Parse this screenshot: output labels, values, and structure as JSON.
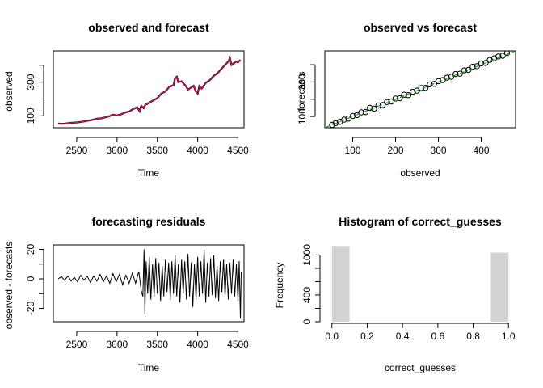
{
  "chart_data": [
    {
      "type": "line",
      "title": "observed and forecast",
      "xlabel": "Time",
      "ylabel": "observed",
      "xlim": [
        2210,
        4575
      ],
      "ylim": [
        30,
        485
      ],
      "xticks": [
        2500,
        3000,
        3500,
        4000,
        4500
      ],
      "yticks": [
        100,
        300
      ],
      "yticks_unlabeled": [
        200,
        400
      ],
      "grid": false,
      "legend": "none",
      "series": [
        {
          "color": "#000000",
          "points": [
            [
              2270,
              55
            ],
            [
              2300,
              53
            ],
            [
              2350,
              54
            ],
            [
              2400,
              57
            ],
            [
              2450,
              59
            ],
            [
              2500,
              61
            ],
            [
              2550,
              64
            ],
            [
              2600,
              68
            ],
            [
              2650,
              72
            ],
            [
              2700,
              77
            ],
            [
              2750,
              83
            ],
            [
              2800,
              85
            ],
            [
              2850,
              91
            ],
            [
              2900,
              97
            ],
            [
              2950,
              107
            ],
            [
              3000,
              103
            ],
            [
              3050,
              109
            ],
            [
              3100,
              120
            ],
            [
              3150,
              126
            ],
            [
              3200,
              141
            ],
            [
              3250,
              150
            ],
            [
              3280,
              128
            ],
            [
              3300,
              160
            ],
            [
              3330,
              146
            ],
            [
              3350,
              165
            ],
            [
              3400,
              178
            ],
            [
              3450,
              192
            ],
            [
              3500,
              205
            ],
            [
              3550,
              232
            ],
            [
              3600,
              245
            ],
            [
              3650,
              273
            ],
            [
              3700,
              282
            ],
            [
              3720,
              325
            ],
            [
              3740,
              332
            ],
            [
              3760,
              300
            ],
            [
              3800,
              305
            ],
            [
              3850,
              278
            ],
            [
              3880,
              256
            ],
            [
              3900,
              262
            ],
            [
              3950,
              278
            ],
            [
              3980,
              242
            ],
            [
              4000,
              232
            ],
            [
              4020,
              276
            ],
            [
              4050,
              262
            ],
            [
              4100,
              296
            ],
            [
              4150,
              312
            ],
            [
              4200,
              338
            ],
            [
              4250,
              355
            ],
            [
              4300,
              382
            ],
            [
              4350,
              408
            ],
            [
              4380,
              422
            ],
            [
              4400,
              442
            ],
            [
              4420,
              402
            ],
            [
              4450,
              412
            ],
            [
              4480,
              422
            ],
            [
              4500,
              417
            ],
            [
              4530,
              432
            ]
          ]
        },
        {
          "color": "#df0e62",
          "points": [
            [
              2270,
              55
            ],
            [
              2300,
              53
            ],
            [
              2350,
              54
            ],
            [
              2400,
              57
            ],
            [
              2450,
              59
            ],
            [
              2500,
              61
            ],
            [
              2550,
              64
            ],
            [
              2600,
              68
            ],
            [
              2650,
              72
            ],
            [
              2700,
              77
            ],
            [
              2750,
              83
            ],
            [
              2800,
              85
            ],
            [
              2850,
              91
            ],
            [
              2900,
              97
            ],
            [
              2950,
              107
            ],
            [
              3000,
              103
            ],
            [
              3050,
              109
            ],
            [
              3100,
              120
            ],
            [
              3150,
              126
            ],
            [
              3200,
              141
            ],
            [
              3250,
              150
            ],
            [
              3280,
              128
            ],
            [
              3300,
              160
            ],
            [
              3330,
              146
            ],
            [
              3350,
              165
            ],
            [
              3400,
              178
            ],
            [
              3450,
              192
            ],
            [
              3500,
              205
            ],
            [
              3550,
              232
            ],
            [
              3600,
              245
            ],
            [
              3650,
              273
            ],
            [
              3700,
              282
            ],
            [
              3720,
              325
            ],
            [
              3740,
              332
            ],
            [
              3760,
              300
            ],
            [
              3800,
              305
            ],
            [
              3850,
              278
            ],
            [
              3880,
              256
            ],
            [
              3900,
              262
            ],
            [
              3950,
              278
            ],
            [
              3980,
              242
            ],
            [
              4000,
              232
            ],
            [
              4020,
              276
            ],
            [
              4050,
              262
            ],
            [
              4100,
              296
            ],
            [
              4150,
              312
            ],
            [
              4200,
              338
            ],
            [
              4250,
              355
            ],
            [
              4300,
              382
            ],
            [
              4350,
              408
            ],
            [
              4380,
              422
            ],
            [
              4400,
              442
            ],
            [
              4420,
              402
            ],
            [
              4450,
              412
            ],
            [
              4480,
              422
            ],
            [
              4500,
              417
            ],
            [
              4530,
              432
            ]
          ]
        }
      ]
    },
    {
      "type": "scatter",
      "title": "observed vs forecast",
      "xlabel": "observed",
      "ylabel": "forecasts",
      "xlim": [
        35,
        480
      ],
      "ylim": [
        35,
        480
      ],
      "xticks": [
        100,
        200,
        300,
        400
      ],
      "yticks": [
        100,
        300
      ],
      "yticks_unlabeled": [
        200,
        400
      ],
      "grid": false,
      "legend": "none",
      "points_color": "#000000",
      "fit_line": {
        "color": "#1a9e1a",
        "slope": 1,
        "intercept": 0
      },
      "points": [
        [
          52,
          52
        ],
        [
          60,
          61
        ],
        [
          70,
          69
        ],
        [
          80,
          82
        ],
        [
          90,
          88
        ],
        [
          100,
          103
        ],
        [
          110,
          108
        ],
        [
          120,
          124
        ],
        [
          130,
          126
        ],
        [
          140,
          150
        ],
        [
          150,
          145
        ],
        [
          160,
          164
        ],
        [
          170,
          166
        ],
        [
          180,
          184
        ],
        [
          190,
          187
        ],
        [
          200,
          204
        ],
        [
          210,
          206
        ],
        [
          220,
          226
        ],
        [
          230,
          224
        ],
        [
          240,
          243
        ],
        [
          250,
          250
        ],
        [
          260,
          265
        ],
        [
          270,
          266
        ],
        [
          280,
          286
        ],
        [
          290,
          289
        ],
        [
          300,
          305
        ],
        [
          310,
          311
        ],
        [
          320,
          325
        ],
        [
          330,
          330
        ],
        [
          340,
          346
        ],
        [
          350,
          348
        ],
        [
          360,
          367
        ],
        [
          370,
          370
        ],
        [
          380,
          388
        ],
        [
          390,
          392
        ],
        [
          400,
          408
        ],
        [
          410,
          410
        ],
        [
          420,
          428
        ],
        [
          430,
          437
        ],
        [
          440,
          448
        ],
        [
          450,
          452
        ],
        [
          460,
          468
        ]
      ]
    },
    {
      "type": "line",
      "title": "forecasting residuals",
      "xlabel": "Time",
      "ylabel": "observed - forecasts",
      "xlim": [
        2210,
        4575
      ],
      "ylim": [
        -29,
        23
      ],
      "xticks": [
        2500,
        3000,
        3500,
        4000,
        4500
      ],
      "yticks": [
        -20,
        0,
        20
      ],
      "yticks_unlabeled": [
        -10,
        10
      ],
      "grid": false,
      "legend": "none",
      "series": [
        {
          "color": "#000000",
          "points": [
            [
              2270,
              0
            ],
            [
              2310,
              1.5
            ],
            [
              2350,
              -1
            ],
            [
              2390,
              2
            ],
            [
              2430,
              -1.5
            ],
            [
              2470,
              1
            ],
            [
              2510,
              -2
            ],
            [
              2550,
              2.5
            ],
            [
              2590,
              -1
            ],
            [
              2630,
              1.8
            ],
            [
              2670,
              -2.5
            ],
            [
              2710,
              2
            ],
            [
              2750,
              -1.5
            ],
            [
              2790,
              3
            ],
            [
              2830,
              -2
            ],
            [
              2870,
              2
            ],
            [
              2910,
              -3
            ],
            [
              2950,
              3.5
            ],
            [
              2990,
              -2
            ],
            [
              3030,
              3
            ],
            [
              3070,
              -4
            ],
            [
              3110,
              2.5
            ],
            [
              3150,
              -3
            ],
            [
              3190,
              4
            ],
            [
              3230,
              -3
            ],
            [
              3270,
              5
            ],
            [
              3300,
              -8
            ],
            [
              3320,
              -12
            ],
            [
              3335,
              20
            ],
            [
              3345,
              -24
            ],
            [
              3360,
              12
            ],
            [
              3380,
              -10
            ],
            [
              3400,
              15
            ],
            [
              3420,
              -14
            ],
            [
              3440,
              10
            ],
            [
              3460,
              -12
            ],
            [
              3480,
              14
            ],
            [
              3500,
              -10
            ],
            [
              3520,
              11
            ],
            [
              3540,
              -15
            ],
            [
              3560,
              9
            ],
            [
              3580,
              -12
            ],
            [
              3600,
              13
            ],
            [
              3620,
              -9
            ],
            [
              3640,
              11
            ],
            [
              3660,
              -14
            ],
            [
              3680,
              12
            ],
            [
              3700,
              -10
            ],
            [
              3720,
              16
            ],
            [
              3740,
              -12
            ],
            [
              3760,
              10
            ],
            [
              3780,
              -16
            ],
            [
              3800,
              13
            ],
            [
              3820,
              -10
            ],
            [
              3840,
              12
            ],
            [
              3860,
              -14
            ],
            [
              3880,
              17
            ],
            [
              3900,
              -12
            ],
            [
              3920,
              11
            ],
            [
              3940,
              -19
            ],
            [
              3960,
              10
            ],
            [
              3980,
              -14
            ],
            [
              4000,
              15
            ],
            [
              4020,
              -12
            ],
            [
              4040,
              12
            ],
            [
              4060,
              -10
            ],
            [
              4080,
              20
            ],
            [
              4100,
              -16
            ],
            [
              4120,
              11
            ],
            [
              4140,
              -12
            ],
            [
              4160,
              14
            ],
            [
              4180,
              -11
            ],
            [
              4200,
              16
            ],
            [
              4220,
              -13
            ],
            [
              4240,
              9
            ],
            [
              4260,
              -15
            ],
            [
              4280,
              12
            ],
            [
              4300,
              -9
            ],
            [
              4320,
              13
            ],
            [
              4340,
              -12
            ],
            [
              4360,
              10
            ],
            [
              4380,
              -14
            ],
            [
              4400,
              11
            ],
            [
              4420,
              -10
            ],
            [
              4440,
              13
            ],
            [
              4460,
              -12
            ],
            [
              4480,
              10
            ],
            [
              4500,
              -15
            ],
            [
              4515,
              12
            ],
            [
              4530,
              -27
            ],
            [
              4540,
              5
            ]
          ]
        }
      ]
    },
    {
      "type": "bar",
      "title": "Histogram of correct_guesses",
      "xlabel": "correct_guesses",
      "ylabel": "Frequency",
      "xlim": [
        -0.04,
        1.04
      ],
      "ylim": [
        0,
        1150
      ],
      "xticks": [
        0.0,
        0.2,
        0.4,
        0.6,
        0.8,
        1.0
      ],
      "yticks": [
        0,
        400,
        1000
      ],
      "yticks_unlabeled": [
        200,
        600,
        800
      ],
      "grid": false,
      "legend": "none",
      "bar_color": "#d3d3d3",
      "bins": [
        {
          "from": 0.0,
          "to": 0.1,
          "count": 1135
        },
        {
          "from": 0.1,
          "to": 0.2,
          "count": 0
        },
        {
          "from": 0.2,
          "to": 0.3,
          "count": 0
        },
        {
          "from": 0.3,
          "to": 0.4,
          "count": 0
        },
        {
          "from": 0.4,
          "to": 0.5,
          "count": 0
        },
        {
          "from": 0.5,
          "to": 0.6,
          "count": 0
        },
        {
          "from": 0.6,
          "to": 0.7,
          "count": 0
        },
        {
          "from": 0.7,
          "to": 0.8,
          "count": 0
        },
        {
          "from": 0.8,
          "to": 0.9,
          "count": 0
        },
        {
          "from": 0.9,
          "to": 1.0,
          "count": 1035
        }
      ]
    }
  ]
}
